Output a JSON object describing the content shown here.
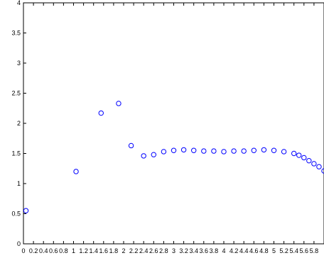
{
  "chart_data": {
    "type": "scatter",
    "title": "",
    "xlabel": "",
    "ylabel": "",
    "xlim": [
      0,
      6
    ],
    "ylim": [
      0,
      4
    ],
    "grid": false,
    "x_ticks": [
      0,
      0.2,
      0.4,
      0.6,
      0.8,
      1,
      1.2,
      1.4,
      1.6,
      1.8,
      2,
      2.2,
      2.4,
      2.6,
      2.8,
      3,
      3.2,
      3.4,
      3.6,
      3.8,
      4,
      4.2,
      4.4,
      4.6,
      4.8,
      5,
      5.2,
      5.4,
      5.6,
      5.8
    ],
    "x_tick_labels": [
      "0",
      "0.2",
      "0.4",
      "0.6",
      "0.8",
      "1",
      "1.2",
      "1.4",
      "1.6",
      "1.8",
      "2",
      "2.2",
      "2.4",
      "2.6",
      "2.8",
      "3",
      "3.2",
      "3.4",
      "3.6",
      "3.8",
      "4",
      "4.2",
      "4.4",
      "4.6",
      "4.8",
      "5",
      "5.2",
      "5.4",
      "5.6",
      "5.8"
    ],
    "y_ticks": [
      0,
      0.5,
      1,
      1.5,
      2,
      2.5,
      3,
      3.5,
      4
    ],
    "y_tick_labels": [
      "0",
      "0.5",
      "1",
      "1.5",
      "2",
      "2.5",
      "3",
      "3.5",
      "4"
    ],
    "marker_color": "#0000ff",
    "series": [
      {
        "x": [
          0.05,
          1.05,
          1.55,
          1.9,
          2.15,
          2.4,
          2.6,
          2.8,
          3.0,
          3.2,
          3.4,
          3.6,
          3.8,
          4.0,
          4.2,
          4.4,
          4.6,
          4.8,
          5.0,
          5.2,
          5.4,
          5.5,
          5.6,
          5.7,
          5.8,
          5.9,
          6.0
        ],
        "y": [
          0.55,
          1.2,
          2.17,
          2.33,
          1.63,
          1.46,
          1.48,
          1.53,
          1.55,
          1.56,
          1.55,
          1.54,
          1.54,
          1.53,
          1.54,
          1.54,
          1.55,
          1.56,
          1.55,
          1.53,
          1.5,
          1.47,
          1.43,
          1.38,
          1.33,
          1.28,
          1.21
        ]
      }
    ]
  }
}
